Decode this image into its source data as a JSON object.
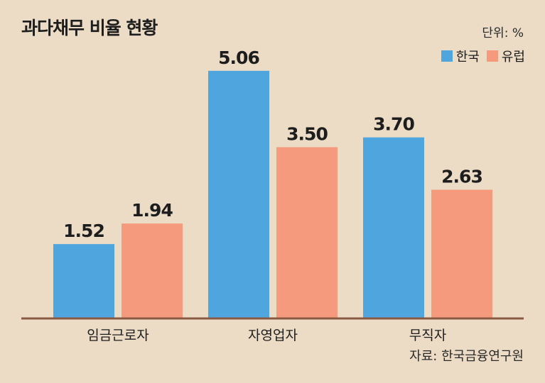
{
  "chart_data": {
    "type": "bar",
    "title": "과다채무 비율  현황",
    "unit_label": "단위: %",
    "categories": [
      "임금근로자",
      "자영업자",
      "무직자"
    ],
    "series": [
      {
        "name": "한국",
        "color": "#4fa6df",
        "values": [
          1.52,
          5.06,
          3.7
        ]
      },
      {
        "name": "유럽",
        "color": "#f59a7c",
        "values": [
          1.94,
          3.5,
          2.63
        ]
      }
    ],
    "value_labels": [
      [
        "1.52",
        "5.06",
        "3.70"
      ],
      [
        "1.94",
        "3.50",
        "2.63"
      ]
    ],
    "ylim": [
      0,
      6
    ],
    "grid": false,
    "legend_position": "top-right",
    "source": "자료: 한국금융연구원",
    "baseline_color": "#8c5a44"
  }
}
